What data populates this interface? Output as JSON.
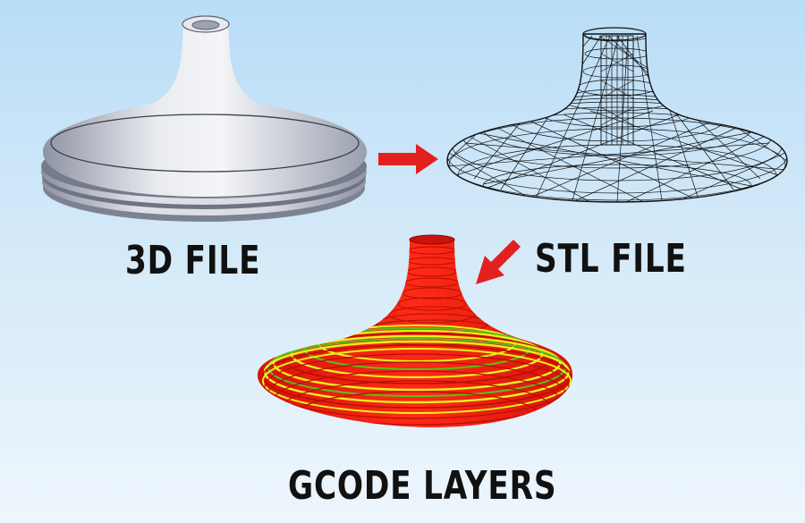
{
  "labels": {
    "solid": "3D FILE",
    "mesh": "STL FILE",
    "layers": "GCODE LAYERS"
  },
  "colors": {
    "background_top": "#b9ddf7",
    "background_bottom": "#eef6fc",
    "arrow": "#e32020",
    "solid_model": "#c9ccd6",
    "wireframe": "#111111",
    "layer_red": "#f21e12",
    "layer_yellow": "#e9f21a",
    "layer_green": "#54c21e"
  },
  "arrows": [
    {
      "name": "arrow-right",
      "direction": "right"
    },
    {
      "name": "arrow-down-left",
      "direction": "down-left"
    }
  ]
}
